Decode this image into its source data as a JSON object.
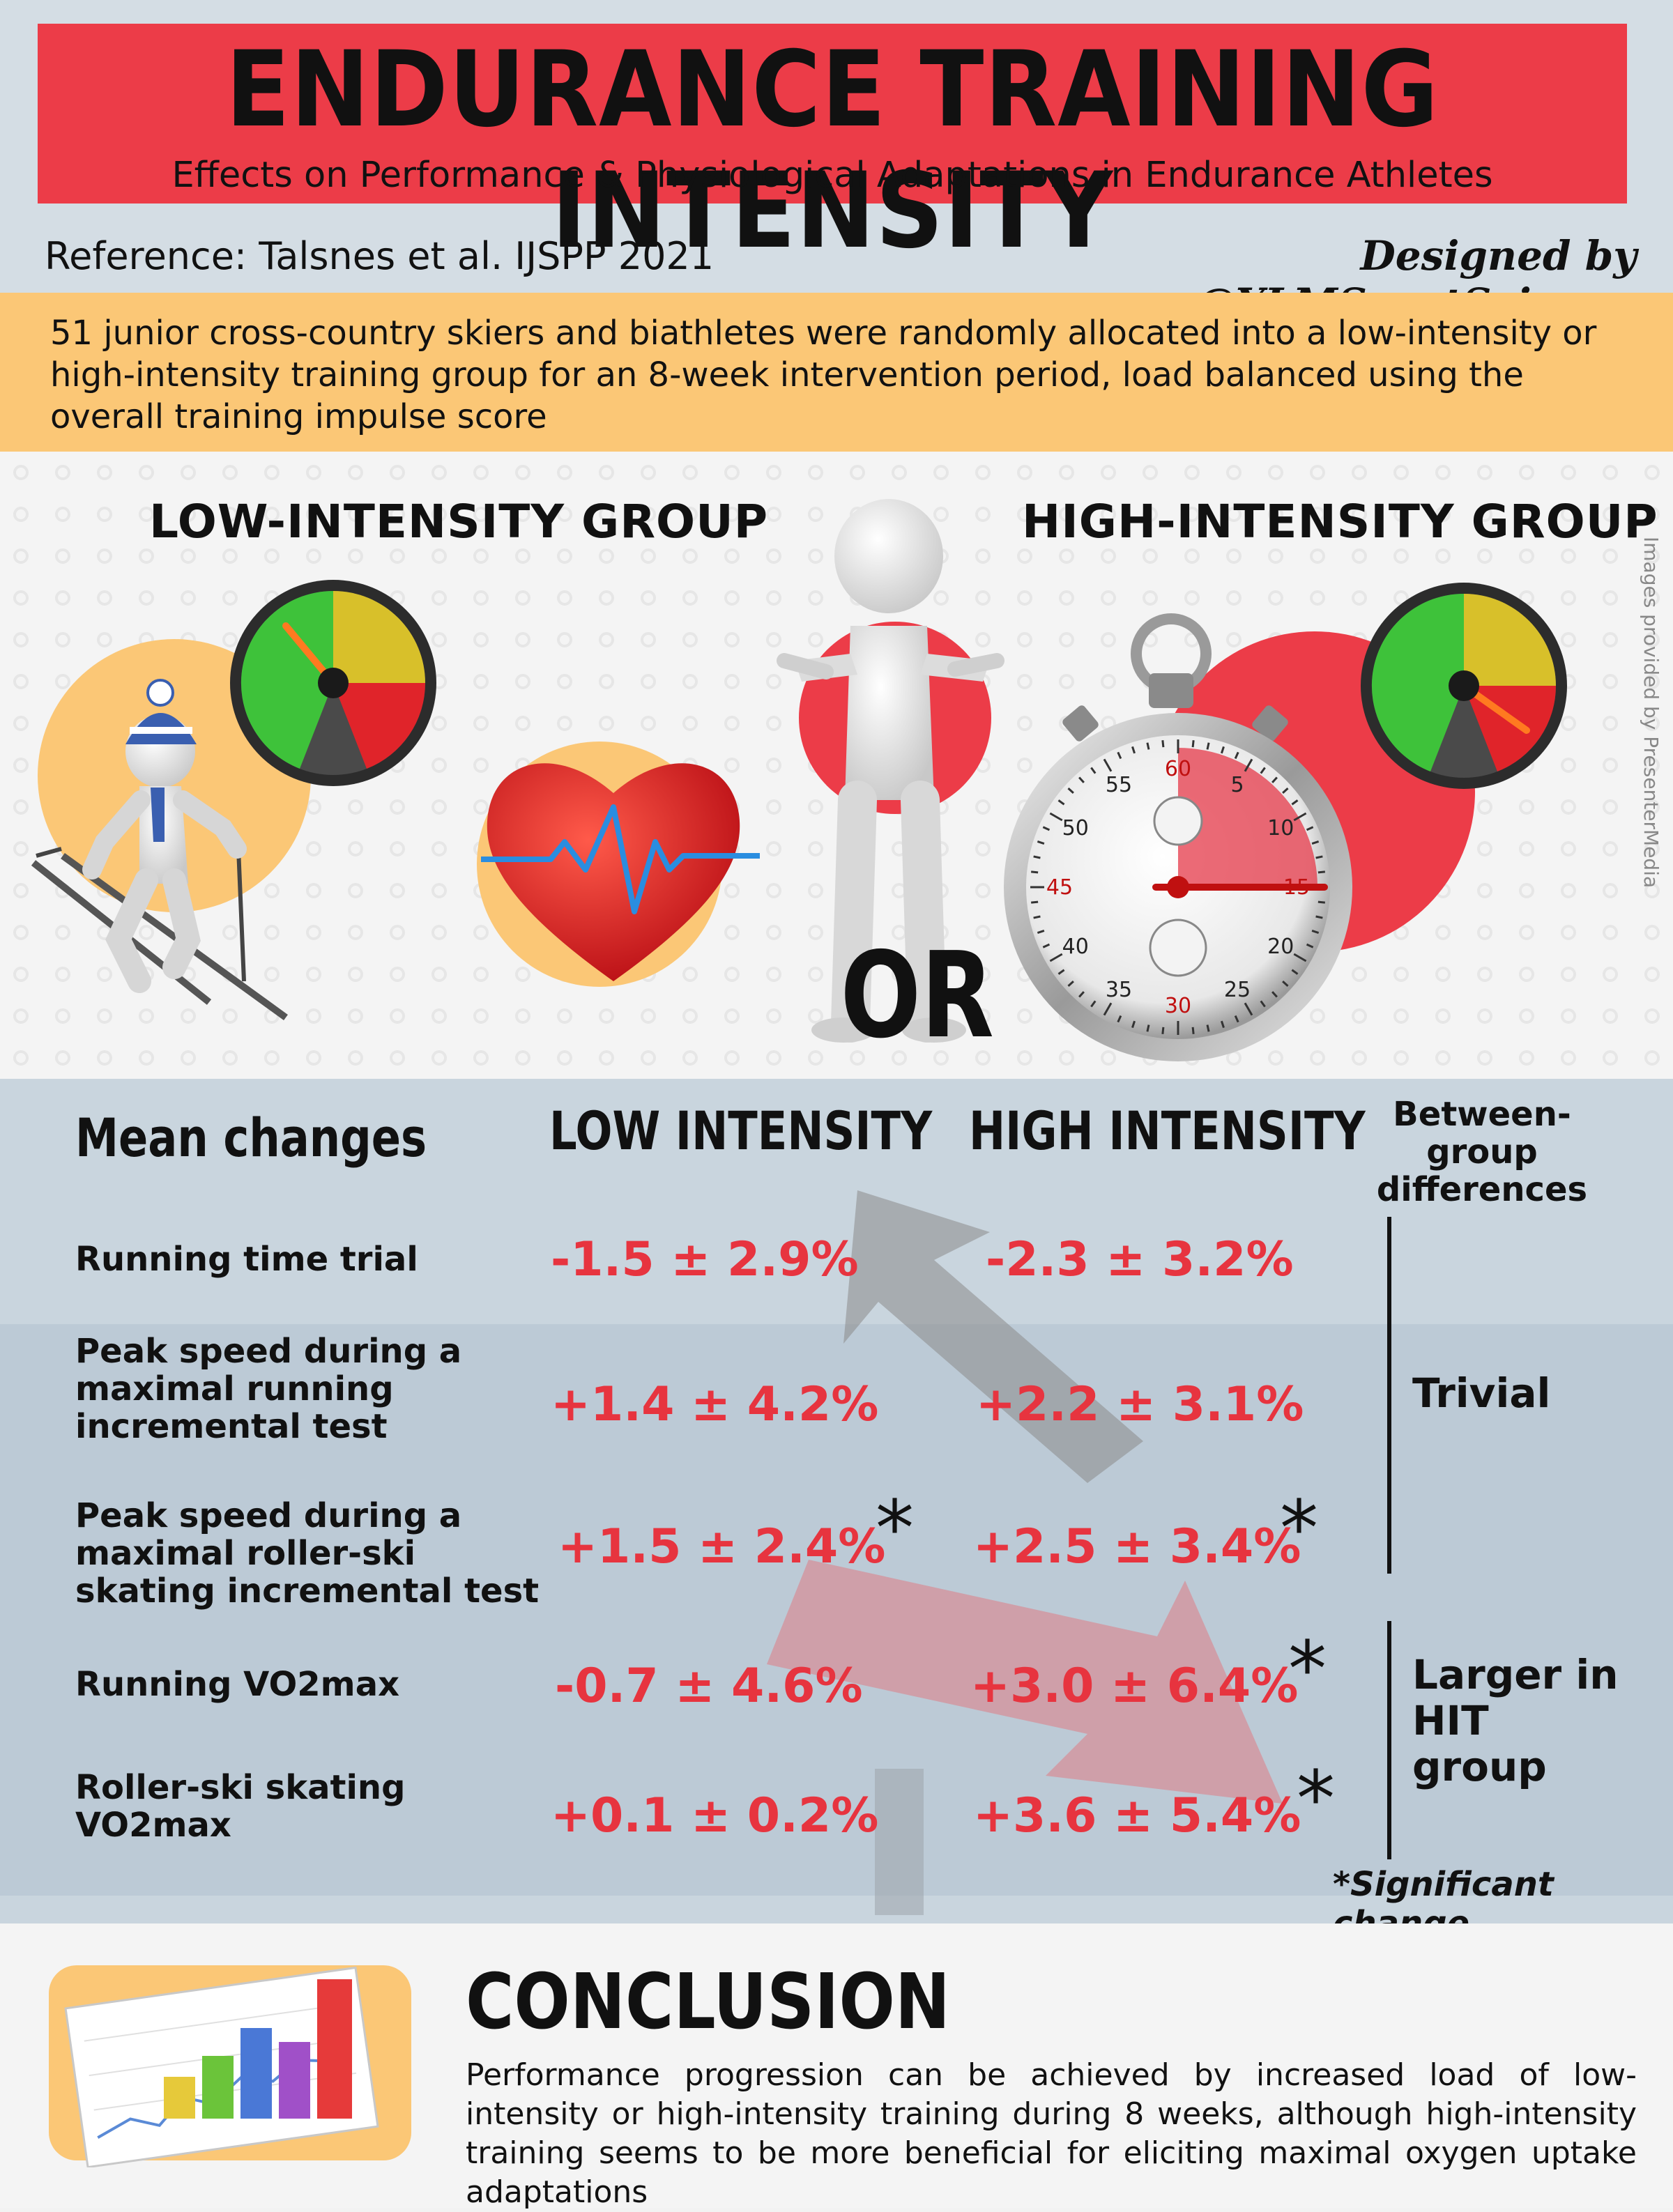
{
  "header": {
    "title": "ENDURANCE TRAINING INTENSITY",
    "subtitle": "Effects on Performance & Physiological Adaptations in Endurance Athletes",
    "reference": "Reference: Talsnes et al. IJSPP 2021",
    "designer": "Designed by @YLMSportScience"
  },
  "intro": "51 junior cross-country skiers and biathletes were randomly allocated into a low-intensity or high-intensity training group for an 8-week intervention period, load balanced using the overall training impulse score",
  "hero": {
    "low_group": "LOW-INTENSITY GROUP",
    "high_group": "HIGH-INTENSITY GROUP",
    "or": "OR",
    "credit": "Images provided by PresenterMedia",
    "stopwatch_numbers": [
      "60",
      "5",
      "10",
      "15",
      "20",
      "25",
      "30",
      "35",
      "40",
      "45",
      "50",
      "55"
    ]
  },
  "results": {
    "col_mean": "Mean changes",
    "col_low": "LOW INTENSITY",
    "col_high": "HIGH INTENSITY",
    "col_between_1": "Between-group",
    "col_between_2": "differences",
    "rows": [
      {
        "label_lines": [
          "Running time trial"
        ],
        "low": "-1.5 ± 2.9%",
        "high": "-2.3 ± 3.2%"
      },
      {
        "label_lines": [
          "Peak speed during a",
          "maximal running",
          "incremental test"
        ],
        "low": "+1.4 ± 4.2%",
        "high": "+2.2 ± 3.1%"
      },
      {
        "label_lines": [
          "Peak speed during a",
          "maximal roller-ski",
          "skating incremental test"
        ],
        "low": "+1.5 ± 2.4%",
        "high": "+2.5 ± 3.4%"
      },
      {
        "label_lines": [
          "Running VO2max"
        ],
        "low": "-0.7 ± 4.6%",
        "high": "+3.0 ± 6.4%"
      },
      {
        "label_lines": [
          "Roller-ski skating",
          "VO2max"
        ],
        "low": "+0.1 ± 0.2%",
        "high": "+3.6 ± 5.4%"
      }
    ],
    "star": "*",
    "trivial": "Trivial",
    "larger_lines": [
      "Larger in",
      "HIT",
      "group"
    ],
    "significant_note": "*Significant change"
  },
  "conclusion": {
    "title": "CONCLUSION",
    "text": "Performance progression can be achieved by increased load of low-intensity or high-intensity training during 8 weeks, although high-intensity training seems to be more beneficial for eliciting maximal oxygen uptake adaptations"
  },
  "colors": {
    "red": "#ec3c48",
    "value_red": "#e7343f",
    "orange": "#fbc776",
    "slate": "#c9d5de",
    "gauge_green": "#3ec23a",
    "gauge_yellow": "#d8c02a",
    "gauge_red": "#e0242a"
  }
}
